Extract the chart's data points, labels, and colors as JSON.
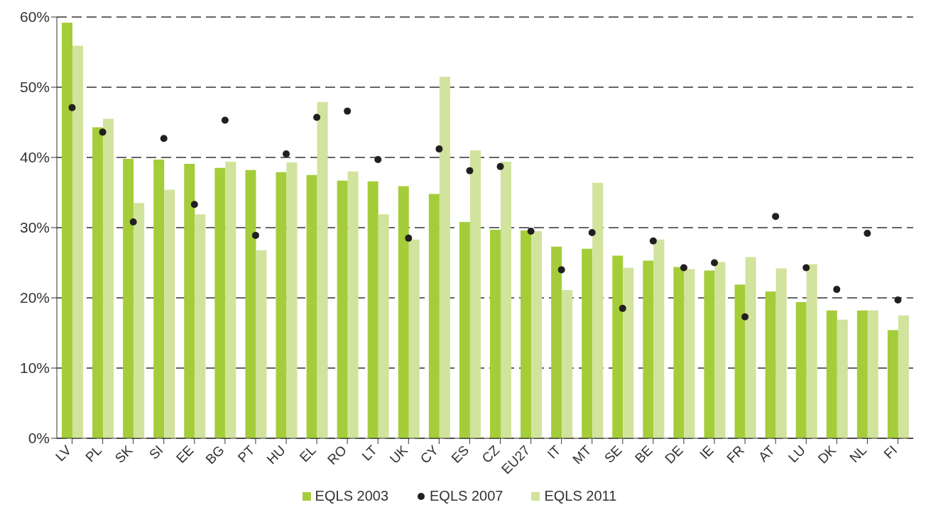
{
  "chart_data": {
    "type": "bar",
    "categories": [
      "LV",
      "PL",
      "SK",
      "SI",
      "EE",
      "BG",
      "PT",
      "HU",
      "EL",
      "RO",
      "LT",
      "UK",
      "CY",
      "ES",
      "CZ",
      "EU27",
      "IT",
      "MT",
      "SE",
      "BE",
      "DE",
      "IE",
      "FR",
      "AT",
      "LU",
      "DK",
      "NL",
      "FI"
    ],
    "series": [
      {
        "name": "EQLS 2003",
        "color": "#a4cd39",
        "values": [
          59.2,
          44.3,
          39.8,
          39.7,
          39.1,
          38.5,
          38.2,
          37.9,
          37.5,
          36.7,
          36.6,
          35.9,
          34.8,
          30.8,
          29.7,
          29.6,
          27.3,
          27.0,
          26.0,
          25.3,
          24.4,
          23.9,
          21.9,
          20.9,
          19.4,
          18.2,
          18.2,
          15.4
        ]
      },
      {
        "name": "EQLS 2007",
        "type": "scatter",
        "marker": "circle",
        "color": "#231f20",
        "values": [
          47.1,
          43.6,
          30.8,
          42.7,
          33.3,
          45.3,
          28.9,
          40.5,
          45.7,
          46.6,
          39.7,
          28.5,
          41.2,
          38.1,
          38.7,
          29.5,
          24.0,
          29.3,
          18.5,
          28.1,
          24.3,
          25.0,
          17.3,
          31.6,
          24.3,
          21.2,
          29.2,
          19.7
        ]
      },
      {
        "name": "EQLS 2011",
        "color": "#d1e39c",
        "values": [
          55.9,
          45.5,
          33.5,
          35.4,
          31.9,
          39.4,
          26.8,
          39.3,
          47.9,
          38.0,
          31.9,
          28.3,
          51.5,
          41.0,
          39.4,
          29.5,
          21.1,
          36.4,
          24.3,
          28.3,
          24.1,
          25.1,
          25.8,
          24.2,
          24.8,
          16.9,
          18.2,
          17.5
        ]
      }
    ],
    "ylim": [
      0,
      60
    ],
    "yticks": [
      {
        "value": 0,
        "label": "0%"
      },
      {
        "value": 10,
        "label": "10%"
      },
      {
        "value": 20,
        "label": "20%"
      },
      {
        "value": 30,
        "label": "30%"
      },
      {
        "value": 40,
        "label": "40%"
      },
      {
        "value": 50,
        "label": "50%"
      },
      {
        "value": 60,
        "label": "60%"
      }
    ],
    "grid": "y",
    "legend": "bottom"
  }
}
